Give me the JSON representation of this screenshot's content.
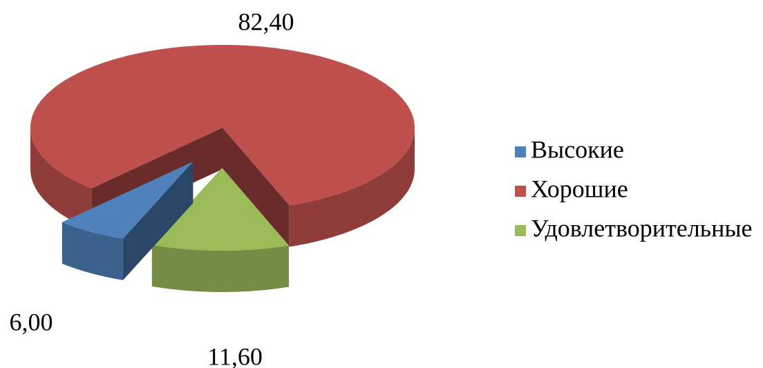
{
  "chart_data": {
    "type": "pie",
    "categories": [
      "Высокие",
      "Хорошие",
      "Удовлетворительные"
    ],
    "values": [
      6.0,
      82.4,
      11.6
    ],
    "value_labels": [
      "6,00",
      "82,40",
      "11,60"
    ],
    "colors": [
      "#4f81bd",
      "#c0504d",
      "#9bbb59"
    ],
    "exploded": [
      true,
      false,
      true
    ],
    "legend": "right"
  }
}
